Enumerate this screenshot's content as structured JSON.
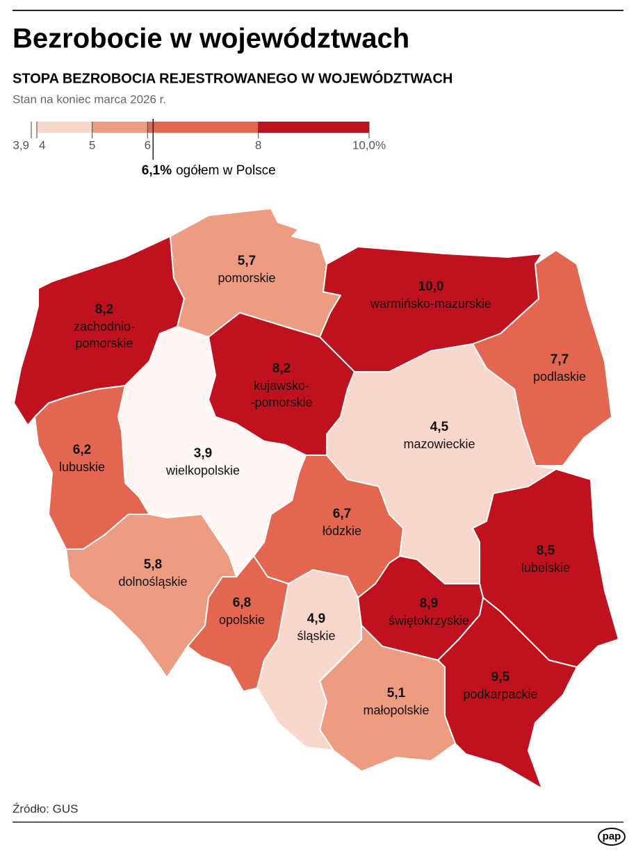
{
  "chart_data": {
    "type": "map",
    "title": "Bezrobocie w województwach",
    "subtitle": "STOPA BEZROBOCIA REJESTROWANEGO W WOJEWÓDZTWACH",
    "note": "Stan na koniec marca 2026 r.",
    "categories": [
      "zachodnio-\npomorskie",
      "pomorskie",
      "warmińsko-mazurskie",
      "podlaskie",
      "kujawsko-\n-pomorskie",
      "mazowieckie",
      "lubelskie",
      "podkarpackie",
      "świętokrzyskie",
      "małopolskie",
      "śląskie",
      "łódzkie",
      "wielkopolskie",
      "lubuskie",
      "dolnośląskie",
      "opolskie"
    ],
    "values": [
      8.2,
      5.7,
      10.0,
      7.7,
      8.2,
      4.5,
      8.5,
      9.5,
      8.9,
      5.1,
      4.9,
      6.7,
      3.9,
      6.2,
      5.8,
      6.8
    ],
    "value_labels": [
      "8,2",
      "5,7",
      "10,0",
      "7,7",
      "8,2",
      "4,5",
      "8,5",
      "9,5",
      "8,9",
      "5,1",
      "4,9",
      "6,7",
      "3,9",
      "6,2",
      "5,8",
      "6,8"
    ],
    "xlim": [
      3.9,
      10
    ],
    "xticks": [
      {
        "value": 3.9,
        "label": "3,9"
      },
      4,
      5,
      6,
      8,
      {
        "value": 10,
        "label": "10,0%"
      }
    ],
    "colors": [
      "#fdf6f3",
      "#f7d6cc",
      "#ee9c81",
      "#e26650",
      "#c0111f"
    ],
    "national": {
      "value": 6.1,
      "label": "6,1%",
      "text": "ogółem w Polsce"
    },
    "source": "Źródło: GUS",
    "logo": "pap"
  }
}
